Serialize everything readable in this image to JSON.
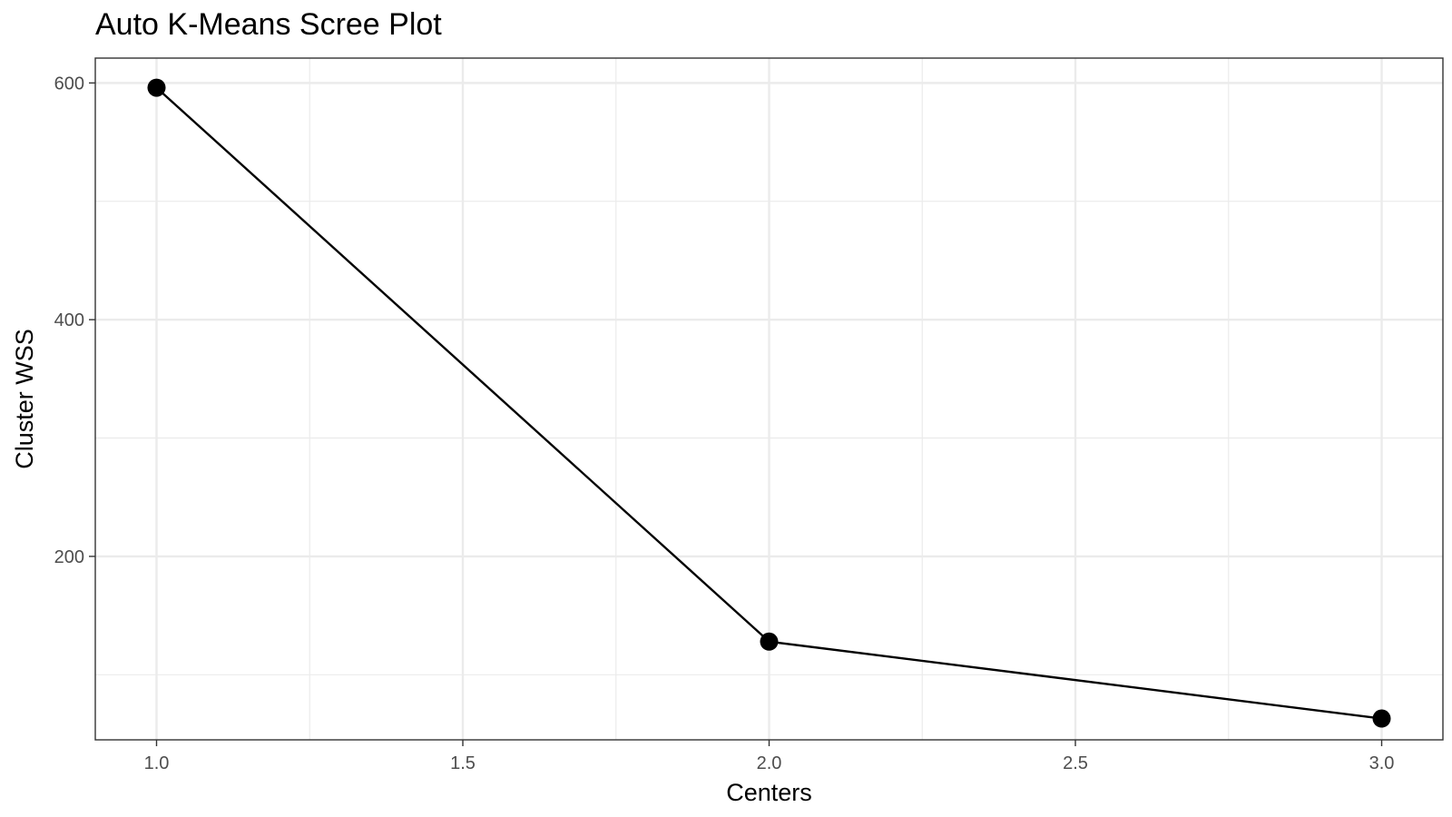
{
  "chart_data": {
    "type": "line",
    "title": "Auto K-Means Scree Plot",
    "xlabel": "Centers",
    "ylabel": "Cluster WSS",
    "x": [
      1,
      2,
      3
    ],
    "series": [
      {
        "values": [
          596,
          128,
          63
        ]
      }
    ],
    "xlim": [
      0.9,
      3.1
    ],
    "ylim": [
      45,
      621
    ],
    "x_ticks": [
      1.0,
      1.5,
      2.0,
      2.5,
      3.0
    ],
    "x_tick_labels": [
      "1.0",
      "1.5",
      "2.0",
      "2.5",
      "3.0"
    ],
    "y_ticks": [
      200,
      400,
      600
    ],
    "y_tick_labels": [
      "200",
      "400",
      "600"
    ],
    "x_minor_ticks": [
      1.25,
      1.75,
      2.25,
      2.75
    ],
    "y_minor_ticks": [
      100,
      300,
      500
    ],
    "grid": true,
    "legend": "none",
    "colors": {
      "line": "#000000",
      "point": "#000000",
      "grid": "#ebebeb",
      "panel_border": "#333333",
      "tick_text": "#4d4d4d"
    }
  }
}
